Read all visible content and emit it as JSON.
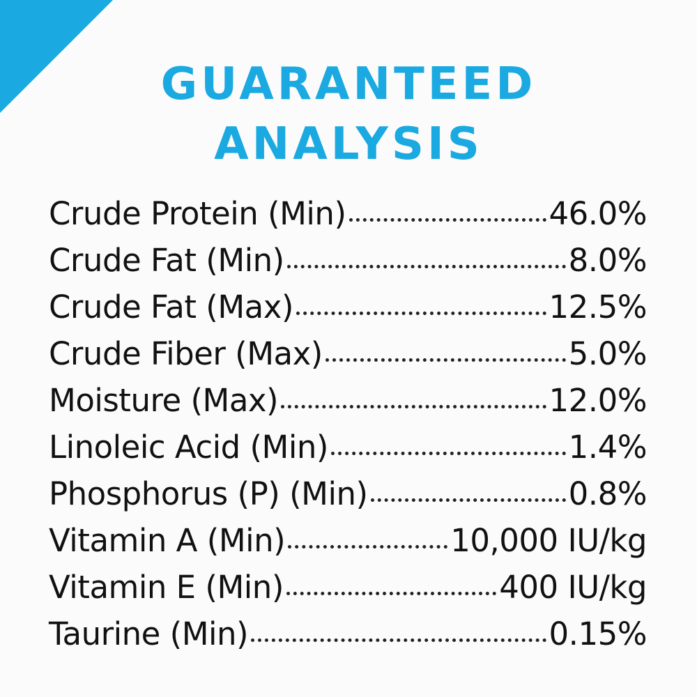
{
  "header": {
    "title_lines": [
      "GUARANTEED",
      "ANALYSIS"
    ]
  },
  "table": {
    "rows": [
      [
        "Crude Protein (Min)",
        "46.0%"
      ],
      [
        "Crude Fat (Min)",
        "8.0%"
      ],
      [
        "Crude Fat (Max)",
        "12.5%"
      ],
      [
        "Crude Fiber (Max)",
        "5.0%"
      ],
      [
        "Moisture (Max)",
        "12.0%"
      ],
      [
        "Linoleic Acid (Min)",
        "1.4%"
      ],
      [
        "Phosphorus (P) (Min)",
        "0.8%"
      ],
      [
        "Vitamin A (Min)",
        "10,000 IU/kg"
      ],
      [
        "Vitamin E (Min)",
        "400 IU/kg"
      ],
      [
        "Taurine (Min)",
        "0.15%"
      ]
    ]
  }
}
